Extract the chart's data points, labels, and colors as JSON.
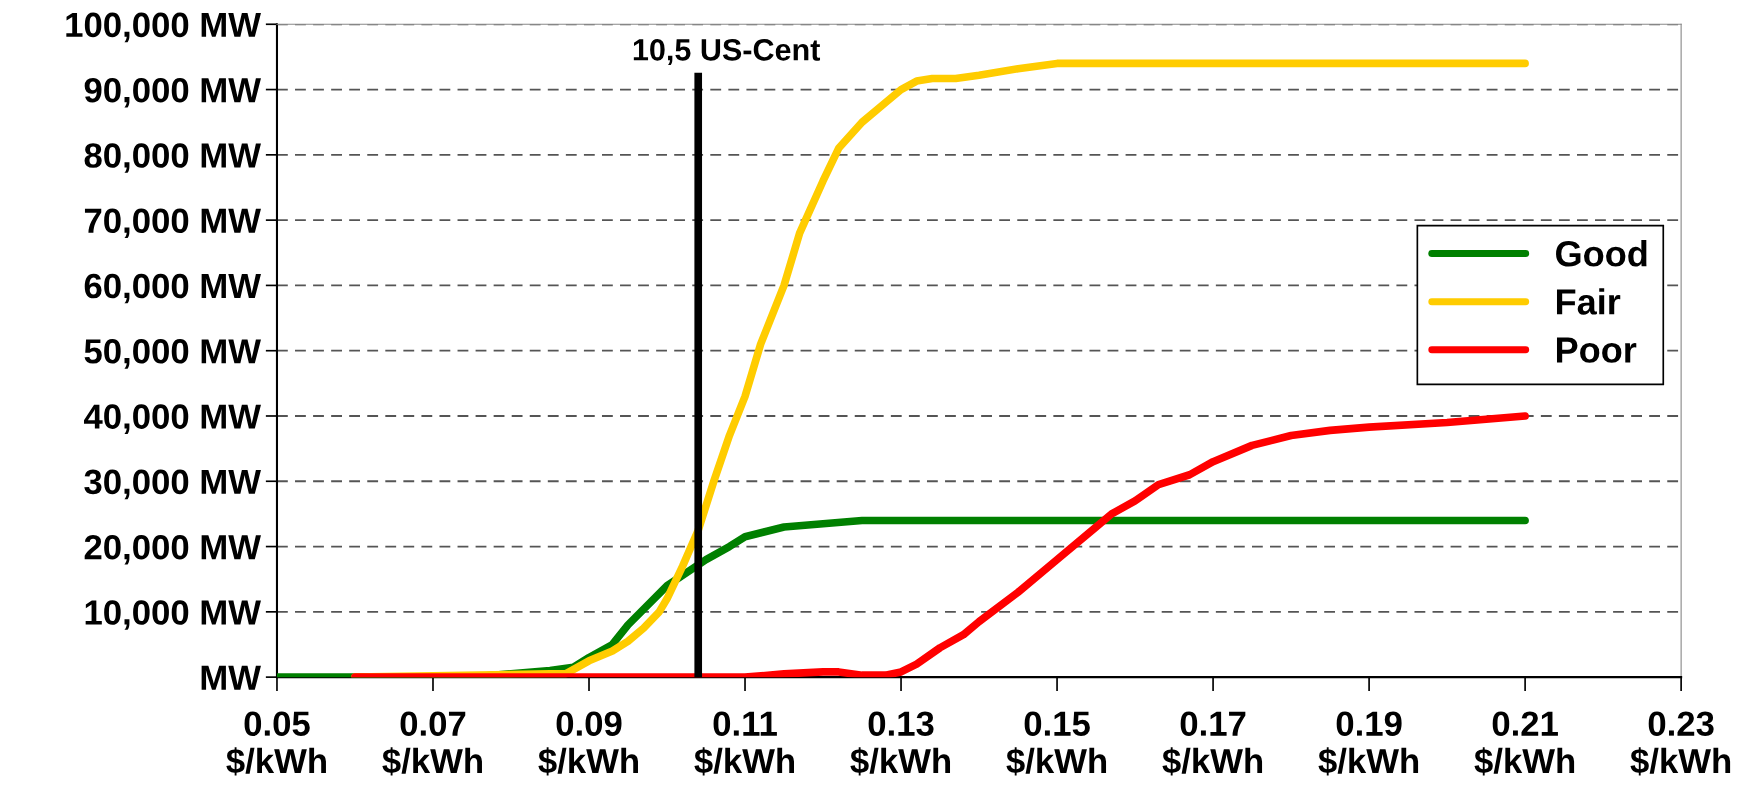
{
  "chart_data": {
    "type": "line",
    "xlim": [
      0.05,
      0.23
    ],
    "xticks": [
      {
        "value": 0.05,
        "label": "0.05\n$/kWh"
      },
      {
        "value": 0.07,
        "label": "0.07\n$/kWh"
      },
      {
        "value": 0.09,
        "label": "0.09\n$/kWh"
      },
      {
        "value": 0.11,
        "label": "0.11\n$/kWh"
      },
      {
        "value": 0.13,
        "label": "0.13\n$/kWh"
      },
      {
        "value": 0.15,
        "label": "0.15\n$/kWh"
      },
      {
        "value": 0.17,
        "label": "0.17\n$/kWh"
      },
      {
        "value": 0.19,
        "label": "0.19\n$/kWh"
      },
      {
        "value": 0.21,
        "label": "0.21\n$/kWh"
      },
      {
        "value": 0.23,
        "label": "0.23\n$/kWh"
      }
    ],
    "ylim": [
      0,
      100000
    ],
    "yticks": [
      {
        "value": 0,
        "label": "MW"
      },
      {
        "value": 10000,
        "label": "10,000 MW"
      },
      {
        "value": 20000,
        "label": "20,000 MW"
      },
      {
        "value": 30000,
        "label": "30,000 MW"
      },
      {
        "value": 40000,
        "label": "40,000 MW"
      },
      {
        "value": 50000,
        "label": "50,000 MW"
      },
      {
        "value": 60000,
        "label": "60,000 MW"
      },
      {
        "value": 70000,
        "label": "70,000 MW"
      },
      {
        "value": 80000,
        "label": "80,000 MW"
      },
      {
        "value": 90000,
        "label": "90,000 MW"
      },
      {
        "value": 100000,
        "label": "100,000 MW"
      }
    ],
    "grid": "y",
    "legend": "right",
    "line_style": "solid",
    "marker": "none",
    "ref_lines": [
      {
        "axis": "x",
        "value": 0.104,
        "label": "10,5 US-Cent",
        "color": "#000000"
      }
    ],
    "series": [
      {
        "name": "Good",
        "color": "#008000",
        "x": [
          0.05,
          0.075,
          0.08,
          0.085,
          0.088,
          0.09,
          0.093,
          0.095,
          0.1,
          0.105,
          0.108,
          0.11,
          0.115,
          0.12,
          0.125,
          0.21
        ],
        "values": [
          0,
          0,
          500,
          1000,
          1500,
          3000,
          5000,
          8000,
          14000,
          18000,
          20000,
          21500,
          23000,
          23500,
          24000,
          24000
        ]
      },
      {
        "name": "Fair",
        "color": "#ffcc00",
        "x": [
          0.06,
          0.085,
          0.087,
          0.09,
          0.093,
          0.095,
          0.097,
          0.099,
          0.1,
          0.102,
          0.104,
          0.106,
          0.108,
          0.11,
          0.112,
          0.115,
          0.117,
          0.12,
          0.122,
          0.125,
          0.128,
          0.13,
          0.132,
          0.134,
          0.137,
          0.14,
          0.145,
          0.15,
          0.21
        ],
        "values": [
          0,
          500,
          500,
          2500,
          4000,
          5500,
          7500,
          10000,
          12000,
          17000,
          22500,
          30000,
          37000,
          43000,
          51000,
          60000,
          68000,
          76000,
          81000,
          85000,
          88000,
          90000,
          91300,
          91700,
          91700,
          92200,
          93200,
          94000,
          94000
        ]
      },
      {
        "name": "Poor",
        "color": "#ff0000",
        "x": [
          0.06,
          0.11,
          0.115,
          0.12,
          0.122,
          0.125,
          0.128,
          0.13,
          0.132,
          0.135,
          0.138,
          0.14,
          0.145,
          0.15,
          0.155,
          0.157,
          0.16,
          0.163,
          0.167,
          0.17,
          0.175,
          0.18,
          0.185,
          0.19,
          0.2,
          0.21
        ],
        "values": [
          0,
          0,
          500,
          800,
          800,
          300,
          300,
          800,
          2000,
          4500,
          6500,
          8500,
          13000,
          18000,
          23000,
          25000,
          27000,
          29500,
          31000,
          33000,
          35500,
          37000,
          37800,
          38300,
          39000,
          40000
        ]
      }
    ]
  }
}
